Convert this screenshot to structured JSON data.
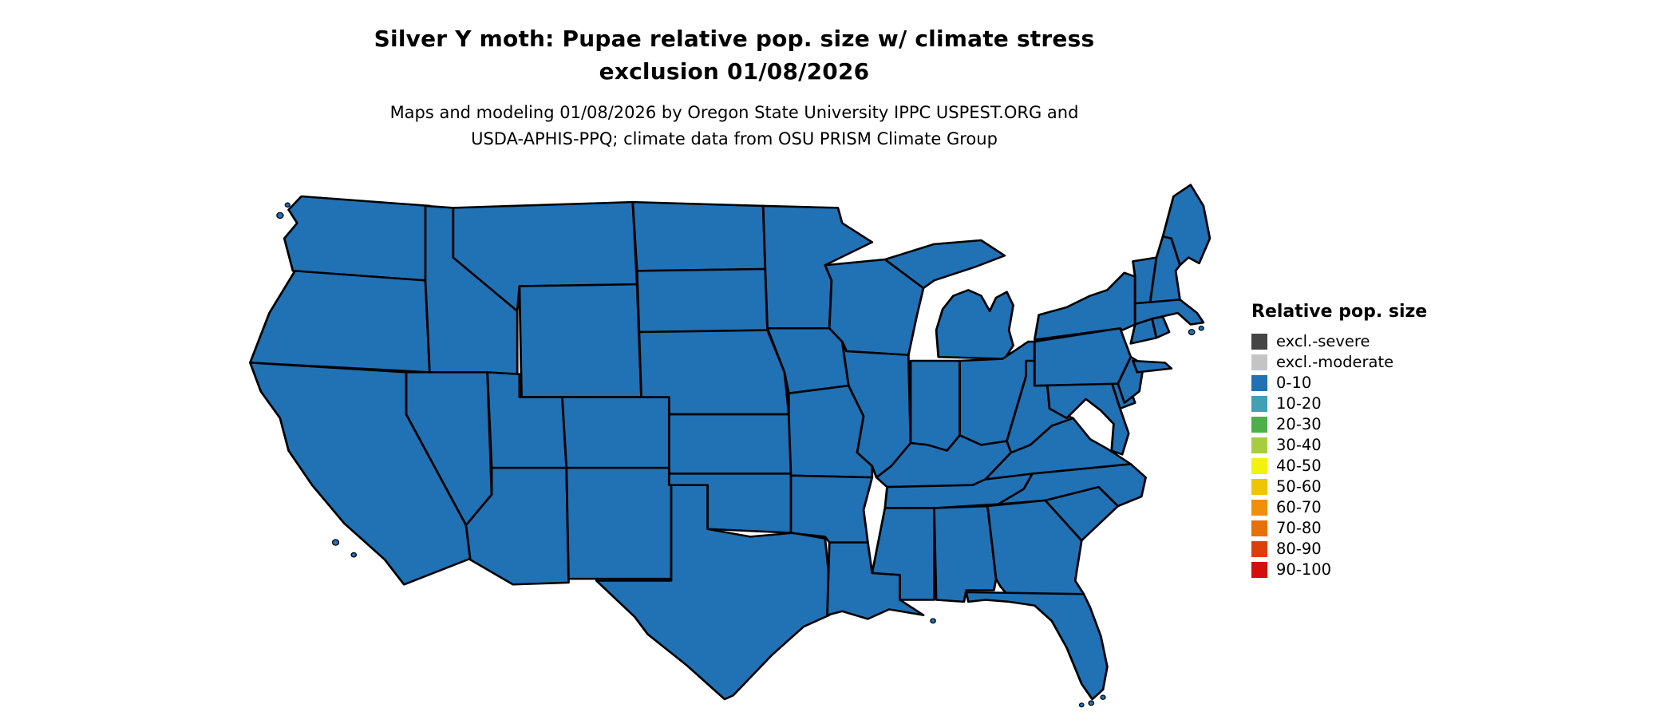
{
  "figure": {
    "title_line1": "Silver Y moth: Pupae relative pop. size w/ climate stress",
    "title_line2": "exclusion 01/08/2026",
    "subtitle_line1": "Maps and modeling 01/08/2026 by Oregon State University IPPC USPEST.ORG and",
    "subtitle_line2": "USDA-APHIS-PPQ; climate data from OSU PRISM Climate Group"
  },
  "legend": {
    "title": "Relative pop. size",
    "items": [
      {
        "label": "excl.-severe",
        "color": "#454545"
      },
      {
        "label": "excl.-moderate",
        "color": "#C4C4C4"
      },
      {
        "label": "0-10",
        "color": "#2171B5"
      },
      {
        "label": "10-20",
        "color": "#41A0B4"
      },
      {
        "label": "20-30",
        "color": "#4DAF4A"
      },
      {
        "label": "30-40",
        "color": "#A8CC3F"
      },
      {
        "label": "40-50",
        "color": "#F2F20C"
      },
      {
        "label": "50-60",
        "color": "#EFC402"
      },
      {
        "label": "60-70",
        "color": "#F09008"
      },
      {
        "label": "70-80",
        "color": "#E8700A"
      },
      {
        "label": "80-90",
        "color": "#DE3E0B"
      },
      {
        "label": "90-100",
        "color": "#D40D0D"
      }
    ]
  },
  "map": {
    "region": "Contiguous United States",
    "border_color": "#000000",
    "fill_color": "#2171B5",
    "states": [
      {
        "id": "washington",
        "name": "Washington",
        "value": "0-10"
      },
      {
        "id": "oregon",
        "name": "Oregon",
        "value": "0-10"
      },
      {
        "id": "california",
        "name": "California",
        "value": "0-10"
      },
      {
        "id": "nevada",
        "name": "Nevada",
        "value": "0-10"
      },
      {
        "id": "idaho",
        "name": "Idaho",
        "value": "0-10"
      },
      {
        "id": "utah",
        "name": "Utah",
        "value": "0-10"
      },
      {
        "id": "arizona",
        "name": "Arizona",
        "value": "0-10"
      },
      {
        "id": "montana",
        "name": "Montana",
        "value": "0-10"
      },
      {
        "id": "wyoming",
        "name": "Wyoming",
        "value": "0-10"
      },
      {
        "id": "colorado",
        "name": "Colorado",
        "value": "0-10"
      },
      {
        "id": "new-mexico",
        "name": "New Mexico",
        "value": "0-10"
      },
      {
        "id": "north-dakota",
        "name": "North Dakota",
        "value": "0-10"
      },
      {
        "id": "south-dakota",
        "name": "South Dakota",
        "value": "0-10"
      },
      {
        "id": "nebraska",
        "name": "Nebraska",
        "value": "0-10"
      },
      {
        "id": "kansas",
        "name": "Kansas",
        "value": "0-10"
      },
      {
        "id": "oklahoma",
        "name": "Oklahoma",
        "value": "0-10"
      },
      {
        "id": "texas",
        "name": "Texas",
        "value": "0-10"
      },
      {
        "id": "minnesota",
        "name": "Minnesota",
        "value": "0-10"
      },
      {
        "id": "iowa",
        "name": "Iowa",
        "value": "0-10"
      },
      {
        "id": "missouri",
        "name": "Missouri",
        "value": "0-10"
      },
      {
        "id": "arkansas",
        "name": "Arkansas",
        "value": "0-10"
      },
      {
        "id": "louisiana",
        "name": "Louisiana",
        "value": "0-10"
      },
      {
        "id": "wisconsin",
        "name": "Wisconsin",
        "value": "0-10"
      },
      {
        "id": "illinois",
        "name": "Illinois",
        "value": "0-10"
      },
      {
        "id": "michigan",
        "name": "Michigan",
        "value": "0-10"
      },
      {
        "id": "indiana",
        "name": "Indiana",
        "value": "0-10"
      },
      {
        "id": "ohio",
        "name": "Ohio",
        "value": "0-10"
      },
      {
        "id": "kentucky",
        "name": "Kentucky",
        "value": "0-10"
      },
      {
        "id": "tennessee",
        "name": "Tennessee",
        "value": "0-10"
      },
      {
        "id": "mississippi",
        "name": "Mississippi",
        "value": "0-10"
      },
      {
        "id": "alabama",
        "name": "Alabama",
        "value": "0-10"
      },
      {
        "id": "georgia",
        "name": "Georgia",
        "value": "0-10"
      },
      {
        "id": "florida",
        "name": "Florida",
        "value": "0-10"
      },
      {
        "id": "south-carolina",
        "name": "South Carolina",
        "value": "0-10"
      },
      {
        "id": "north-carolina",
        "name": "North Carolina",
        "value": "0-10"
      },
      {
        "id": "virginia",
        "name": "Virginia",
        "value": "0-10"
      },
      {
        "id": "west-virginia",
        "name": "West Virginia",
        "value": "0-10"
      },
      {
        "id": "maryland",
        "name": "Maryland",
        "value": "0-10"
      },
      {
        "id": "delaware",
        "name": "Delaware",
        "value": "0-10"
      },
      {
        "id": "new-jersey",
        "name": "New Jersey",
        "value": "0-10"
      },
      {
        "id": "pennsylvania",
        "name": "Pennsylvania",
        "value": "0-10"
      },
      {
        "id": "new-york",
        "name": "New York",
        "value": "0-10"
      },
      {
        "id": "connecticut",
        "name": "Connecticut",
        "value": "0-10"
      },
      {
        "id": "rhode-island",
        "name": "Rhode Island",
        "value": "0-10"
      },
      {
        "id": "massachusetts",
        "name": "Massachusetts",
        "value": "0-10"
      },
      {
        "id": "vermont",
        "name": "Vermont",
        "value": "0-10"
      },
      {
        "id": "new-hampshire",
        "name": "New Hampshire",
        "value": "0-10"
      },
      {
        "id": "maine",
        "name": "Maine",
        "value": "0-10"
      }
    ]
  }
}
